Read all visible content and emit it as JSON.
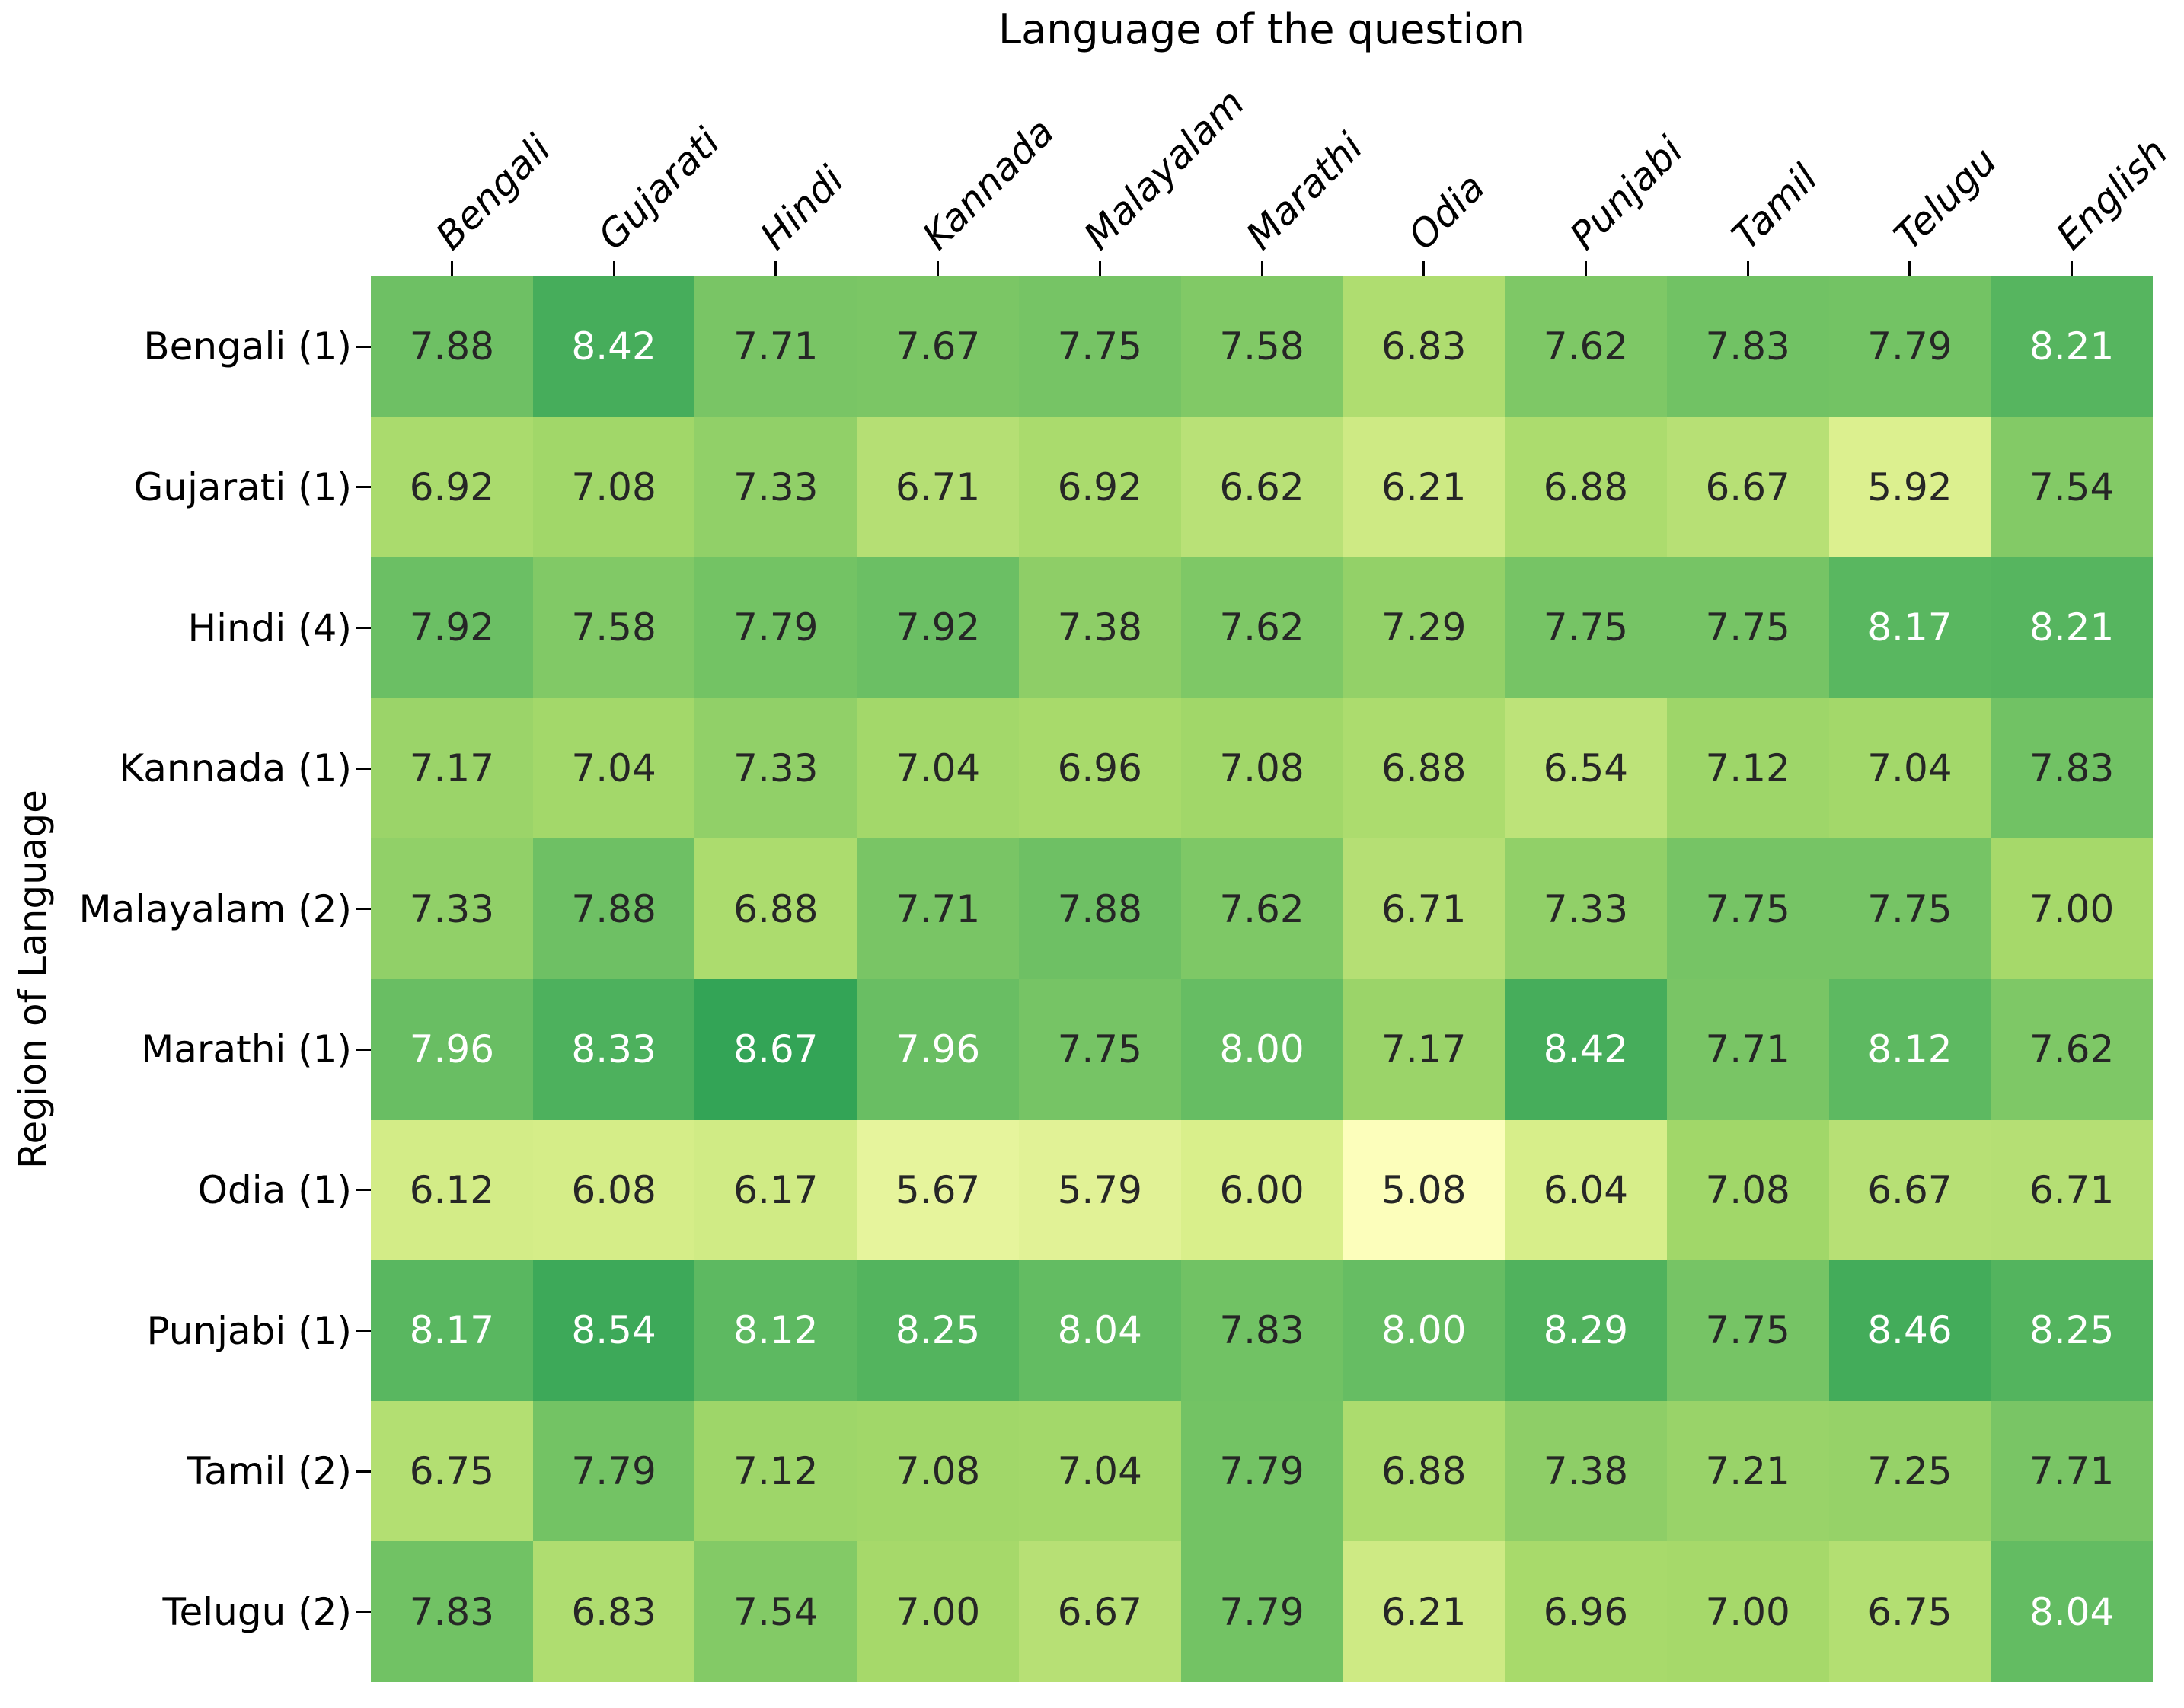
{
  "figure": {
    "title": "Language of the question",
    "y_axis_label": "Region of Language"
  },
  "chart_data": {
    "type": "heatmap",
    "title": "Language of the question",
    "xlabel": "Language of the question",
    "ylabel": "Region of Language",
    "x_tick_labels": [
      "Bengali",
      "Gujarati",
      "Hindi",
      "Kannada",
      "Malayalam",
      "Marathi",
      "Odia",
      "Punjabi",
      "Tamil",
      "Telugu",
      "English"
    ],
    "y_tick_labels": [
      "Bengali (1)",
      "Gujarati (1)",
      "Hindi (4)",
      "Kannada (1)",
      "Malayalam (2)",
      "Marathi (1)",
      "Odia (1)",
      "Punjabi (1)",
      "Tamil (2)",
      "Telugu (2)"
    ],
    "values": [
      [
        7.88,
        8.42,
        7.71,
        7.67,
        7.75,
        7.58,
        6.83,
        7.62,
        7.83,
        7.79,
        8.21
      ],
      [
        6.92,
        7.08,
        7.33,
        6.71,
        6.92,
        6.62,
        6.21,
        6.88,
        6.67,
        5.92,
        7.54
      ],
      [
        7.92,
        7.58,
        7.79,
        7.92,
        7.38,
        7.62,
        7.29,
        7.75,
        7.75,
        8.17,
        8.21
      ],
      [
        7.17,
        7.04,
        7.33,
        7.04,
        6.96,
        7.08,
        6.88,
        6.54,
        7.12,
        7.04,
        7.83
      ],
      [
        7.33,
        7.88,
        6.88,
        7.71,
        7.88,
        7.62,
        6.71,
        7.33,
        7.75,
        7.75,
        7.0
      ],
      [
        7.96,
        8.33,
        8.67,
        7.96,
        7.75,
        8.0,
        7.17,
        8.42,
        7.71,
        8.12,
        7.62
      ],
      [
        6.12,
        6.08,
        6.17,
        5.67,
        5.79,
        6.0,
        5.08,
        6.04,
        7.08,
        6.67,
        6.71
      ],
      [
        8.17,
        8.54,
        8.12,
        8.25,
        8.04,
        7.83,
        8.0,
        8.29,
        7.75,
        8.46,
        8.25
      ],
      [
        6.75,
        7.79,
        7.12,
        7.08,
        7.04,
        7.79,
        6.88,
        7.38,
        7.21,
        7.25,
        7.71
      ],
      [
        7.83,
        6.83,
        7.54,
        7.0,
        6.67,
        7.79,
        6.21,
        6.96,
        7.0,
        6.75,
        8.04
      ]
    ],
    "annotation_decimals": 2,
    "colormap": {
      "name": "RdYlGn",
      "vmin": 0,
      "vmax": 10,
      "stops": [
        "#a50026",
        "#d73027",
        "#f46d43",
        "#fdae61",
        "#fee08b",
        "#ffffbf",
        "#d9ef8b",
        "#a6d96a",
        "#66bd63",
        "#1a9850",
        "#006837"
      ],
      "annot_white_above": 7.94,
      "annot_dark_color": "#262626",
      "annot_light_color": "#ffffff"
    },
    "legend": "none",
    "grid": false,
    "tick_rotation_deg": 45
  }
}
